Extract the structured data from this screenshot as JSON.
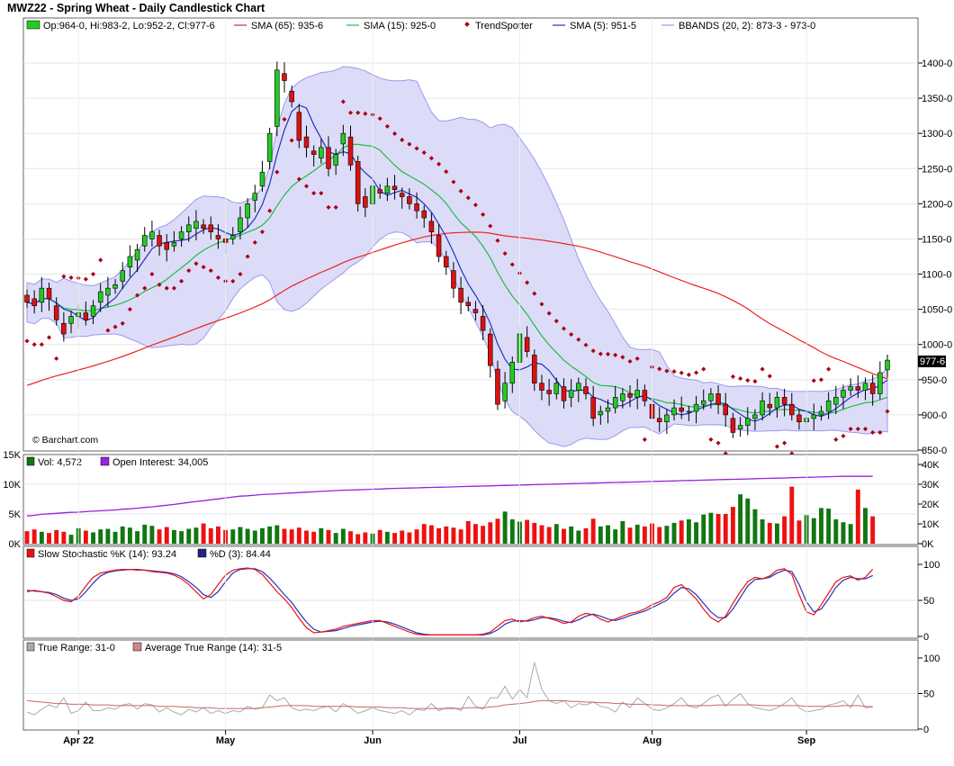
{
  "title": "MWZ22 - Spring Wheat - Daily Candlestick Chart",
  "credit": "© Barchart.com",
  "colors": {
    "up": "#22cc22",
    "down": "#dd1111",
    "sma65": "#ee2222",
    "sma15": "#22bb44",
    "sma5": "#2233bb",
    "trendspotter": "#aa0011",
    "bbands_fill": "#dcdcf8",
    "bbands_line": "#9999ee",
    "vol_up": "#117711",
    "vol_down": "#ee1111",
    "open_interest": "#9922dd",
    "stoch_k": "#ee1111",
    "stoch_d": "#2233bb",
    "tr": "#aaaaaa",
    "atr": "#cc6666"
  },
  "price_legend": {
    "ohlc": "Op:964-0, Hi:983-2, Lo:952-2, Cl:977-6",
    "sma65": "SMA (65): 935-6",
    "sma15": "SMA (15): 925-0",
    "trendspotter": "TrendSpotter",
    "sma5": "SMA (5): 951-5",
    "bbands": "BBANDS (20, 2): 873-3 - 973-0"
  },
  "last_price_label": "977-6",
  "volume_legend": {
    "vol": "Vol: 4,572",
    "oi": "Open Interest: 34,005"
  },
  "stoch_legend": {
    "k": "Slow Stochastic %K (14): 93.24",
    "d": "%D (3): 84.44"
  },
  "tr_legend": {
    "tr": "True Range: 31-0",
    "atr": "Average True Range (14): 31-5"
  },
  "chart_data": {
    "type": "candlestick",
    "x_labels": [
      "Apr 22",
      "May",
      "Jun",
      "Jul",
      "Aug",
      "Sep"
    ],
    "x_label_index": [
      7,
      27,
      47,
      67,
      85,
      106
    ],
    "price_axis": {
      "ticks": [
        "1400-0",
        "1350-0",
        "1300-0",
        "1250-0",
        "1200-0",
        "1150-0",
        "1100-0",
        "1050-0",
        "1000-0",
        "950-0",
        "900-0",
        "850-0"
      ],
      "min": 850,
      "max": 1400
    },
    "volume_axis": {
      "left_ticks": [
        "15K",
        "10K",
        "5K",
        "0K"
      ],
      "right_ticks": [
        "40K",
        "30K",
        "20K",
        "10K",
        "0K"
      ]
    },
    "stoch_axis": {
      "ticks": [
        "100",
        "50",
        "0"
      ]
    },
    "tr_axis": {
      "ticks": [
        "100",
        "50",
        "0"
      ]
    },
    "close": [
      1060,
      1055,
      1080,
      1065,
      1035,
      1015,
      1040,
      1045,
      1035,
      1055,
      1075,
      1080,
      1085,
      1105,
      1125,
      1135,
      1155,
      1160,
      1140,
      1135,
      1145,
      1160,
      1170,
      1175,
      1165,
      1160,
      1150,
      1145,
      1155,
      1180,
      1200,
      1215,
      1245,
      1300,
      1390,
      1375,
      1345,
      1290,
      1280,
      1270,
      1280,
      1250,
      1270,
      1300,
      1255,
      1200,
      1195,
      1225,
      1215,
      1225,
      1220,
      1210,
      1200,
      1190,
      1180,
      1160,
      1125,
      1110,
      1080,
      1060,
      1055,
      1045,
      1020,
      970,
      915,
      945,
      975,
      1015,
      990,
      945,
      935,
      930,
      945,
      920,
      935,
      945,
      930,
      895,
      905,
      910,
      925,
      930,
      925,
      935,
      920,
      895,
      890,
      900,
      910,
      905,
      905,
      915,
      920,
      930,
      915,
      900,
      875,
      885,
      895,
      900,
      920,
      910,
      925,
      915,
      900,
      890,
      895,
      900,
      905,
      920,
      925,
      935,
      940,
      935,
      945,
      930,
      960,
      977.75
    ],
    "open": [
      1070,
      1065,
      1060,
      1080,
      1055,
      1030,
      1030,
      1040,
      1045,
      1040,
      1060,
      1070,
      1080,
      1090,
      1110,
      1120,
      1140,
      1150,
      1155,
      1145,
      1140,
      1150,
      1160,
      1165,
      1170,
      1170,
      1155,
      1150,
      1150,
      1160,
      1180,
      1205,
      1225,
      1260,
      1310,
      1385,
      1360,
      1330,
      1295,
      1275,
      1265,
      1280,
      1255,
      1285,
      1295,
      1260,
      1210,
      1200,
      1220,
      1215,
      1225,
      1215,
      1210,
      1200,
      1190,
      1175,
      1155,
      1125,
      1105,
      1080,
      1060,
      1050,
      1040,
      1015,
      965,
      920,
      945,
      975,
      1010,
      985,
      945,
      935,
      930,
      940,
      925,
      935,
      940,
      925,
      900,
      905,
      910,
      920,
      930,
      925,
      935,
      915,
      895,
      890,
      900,
      910,
      905,
      905,
      915,
      920,
      930,
      915,
      895,
      880,
      885,
      895,
      900,
      915,
      910,
      925,
      915,
      900,
      890,
      895,
      900,
      905,
      915,
      925,
      935,
      940,
      935,
      945,
      930,
      964
    ]
  },
  "volume": [
    2.1,
    2.4,
    2.0,
    1.8,
    2.3,
    2.0,
    1.5,
    2.6,
    2.2,
    1.9,
    2.4,
    2.5,
    2.0,
    2.9,
    2.7,
    2.1,
    3.2,
    3.0,
    2.4,
    2.8,
    2.3,
    2.1,
    2.5,
    2.7,
    3.4,
    2.6,
    2.9,
    2.3,
    2.4,
    2.8,
    2.5,
    2.2,
    2.6,
    2.9,
    3.1,
    2.5,
    2.4,
    2.7,
    2.2,
    2.0,
    2.6,
    2.3,
    1.8,
    2.5,
    2.1,
    1.6,
    1.9,
    1.7,
    2.3,
    2.0,
    1.8,
    2.2,
    1.9,
    2.4,
    3.3,
    3.1,
    2.6,
    2.9,
    2.7,
    2.4,
    3.8,
    3.3,
    3.0,
    3.6,
    4.2,
    5.4,
    4.1,
    3.7,
    4.0,
    3.5,
    3.1,
    2.8,
    3.3,
    2.5,
    2.9,
    2.2,
    2.6,
    4.2,
    2.9,
    3.1,
    2.4,
    3.8,
    2.7,
    3.2,
    2.9,
    3.4,
    2.8,
    3.0,
    3.5,
    3.9,
    4.1,
    3.6,
    4.9,
    5.2,
    5.0,
    5.0,
    6.2,
    8.3,
    7.6,
    5.8,
    4.1,
    3.5,
    3.4,
    4.6,
    9.6,
    3.9,
    4.8,
    4.3,
    6.0,
    5.9,
    4.1,
    3.6,
    3.3,
    9.1,
    6.0,
    4.6
  ],
  "open_interest": [
    14,
    14.3,
    14.8,
    15.1,
    15.3,
    15.6,
    15.8,
    15.9,
    16.2,
    16.4,
    16.6,
    16.8,
    17.0,
    17.4,
    17.6,
    17.9,
    18.3,
    18.6,
    19.0,
    19.4,
    19.8,
    20.3,
    20.8,
    21.3,
    21.7,
    22.2,
    22.6,
    23.1,
    23.6,
    24.0,
    24.2,
    24.5,
    24.8,
    25.0,
    25.2,
    25.4,
    25.6,
    25.8,
    26.0,
    26.2,
    26.4,
    26.6,
    26.8,
    27.0,
    27.1,
    27.2,
    27.3,
    27.5,
    27.6,
    27.8,
    27.9,
    28.0,
    28.1,
    28.2,
    28.3,
    28.4,
    28.5,
    28.6,
    28.7,
    28.8,
    28.9,
    29.0,
    29.1,
    29.2,
    29.3,
    29.4,
    29.5,
    29.6,
    29.7,
    29.8,
    29.9,
    30.0,
    30.1,
    30.2,
    30.3,
    30.4,
    30.5,
    30.6,
    30.7,
    30.8,
    30.9,
    31.0,
    31.1,
    31.2,
    31.3,
    31.4,
    31.5,
    31.6,
    31.7,
    31.8,
    31.9,
    32.0,
    32.1,
    32.2,
    32.3,
    32.4,
    32.5,
    32.6,
    32.7,
    32.8,
    32.9,
    33.0,
    33.1,
    33.2,
    33.3,
    33.4,
    33.5,
    33.6,
    33.7,
    33.8,
    33.9,
    34.0,
    34.0,
    34.0,
    34.0,
    34.0
  ],
  "stoch_k": [
    62,
    64,
    62,
    60,
    55,
    50,
    48,
    56,
    70,
    82,
    88,
    90,
    92,
    93,
    93,
    92,
    92,
    90,
    89,
    88,
    85,
    80,
    72,
    62,
    52,
    58,
    72,
    85,
    92,
    94,
    95,
    93,
    86,
    74,
    62,
    52,
    40,
    25,
    12,
    5,
    6,
    8,
    10,
    14,
    16,
    18,
    20,
    22,
    22,
    18,
    14,
    10,
    6,
    3,
    2,
    2,
    2,
    2,
    2,
    2,
    2,
    2,
    3,
    6,
    14,
    22,
    24,
    20,
    22,
    26,
    28,
    25,
    22,
    18,
    20,
    28,
    32,
    30,
    24,
    20,
    24,
    28,
    32,
    34,
    38,
    44,
    48,
    54,
    68,
    72,
    62,
    52,
    38,
    26,
    20,
    28,
    46,
    62,
    76,
    82,
    80,
    84,
    92,
    94,
    86,
    58,
    34,
    30,
    44,
    60,
    76,
    82,
    84,
    78,
    82,
    93.24
  ],
  "stoch_d": [
    64,
    63,
    62,
    61,
    58,
    53,
    50,
    52,
    62,
    74,
    84,
    89,
    91,
    92,
    93,
    93,
    92,
    91,
    90,
    89,
    87,
    83,
    76,
    68,
    58,
    54,
    62,
    76,
    88,
    93,
    94,
    94,
    90,
    81,
    70,
    58,
    47,
    33,
    20,
    10,
    6,
    7,
    8,
    11,
    14,
    16,
    18,
    20,
    21,
    20,
    17,
    13,
    9,
    5,
    3,
    2,
    2,
    2,
    2,
    2,
    2,
    2,
    2,
    4,
    9,
    17,
    21,
    22,
    21,
    23,
    26,
    26,
    24,
    21,
    19,
    23,
    28,
    31,
    28,
    24,
    22,
    25,
    29,
    32,
    35,
    40,
    45,
    50,
    60,
    68,
    66,
    58,
    46,
    34,
    26,
    26,
    38,
    54,
    70,
    79,
    80,
    82,
    88,
    92,
    90,
    72,
    48,
    34,
    38,
    52,
    68,
    78,
    82,
    80,
    80,
    84.44
  ],
  "true_range": [
    24,
    20,
    28,
    34,
    30,
    44,
    22,
    26,
    38,
    26,
    26,
    30,
    28,
    34,
    36,
    28,
    36,
    34,
    24,
    30,
    24,
    20,
    28,
    24,
    30,
    22,
    26,
    22,
    26,
    24,
    32,
    28,
    30,
    48,
    40,
    44,
    30,
    26,
    28,
    26,
    30,
    32,
    24,
    36,
    30,
    22,
    26,
    30,
    26,
    24,
    22,
    26,
    20,
    28,
    26,
    36,
    26,
    30,
    30,
    26,
    46,
    32,
    28,
    44,
    44,
    60,
    42,
    56,
    44,
    94,
    56,
    40,
    36,
    40,
    30,
    36,
    34,
    38,
    32,
    30,
    24,
    38,
    30,
    44,
    36,
    28,
    26,
    30,
    36,
    44,
    32,
    30,
    36,
    44,
    48,
    32,
    42,
    50,
    36,
    30,
    28,
    26,
    30,
    36,
    44,
    30,
    24,
    26,
    28,
    34,
    36,
    40,
    30,
    48,
    30,
    31
  ],
  "avg_true_range": [
    40,
    39,
    38,
    37,
    36,
    36,
    35,
    35,
    35,
    34,
    34,
    34,
    33,
    33,
    33,
    33,
    33,
    33,
    32,
    32,
    32,
    31,
    31,
    30,
    30,
    30,
    29,
    29,
    29,
    29,
    29,
    29,
    30,
    31,
    32,
    33,
    33,
    33,
    33,
    32,
    32,
    32,
    32,
    32,
    32,
    31,
    31,
    31,
    31,
    30,
    30,
    30,
    29,
    29,
    29,
    29,
    29,
    29,
    29,
    29,
    30,
    30,
    30,
    31,
    32,
    34,
    35,
    36,
    37,
    39,
    40,
    40,
    40,
    40,
    39,
    39,
    38,
    38,
    37,
    37,
    36,
    36,
    35,
    35,
    35,
    34,
    34,
    33,
    33,
    33,
    33,
    33,
    33,
    33,
    34,
    34,
    34,
    34,
    34,
    34,
    33,
    33,
    33,
    33,
    33,
    33,
    32,
    32,
    32,
    32,
    32,
    33,
    33,
    33,
    32,
    31.5
  ]
}
